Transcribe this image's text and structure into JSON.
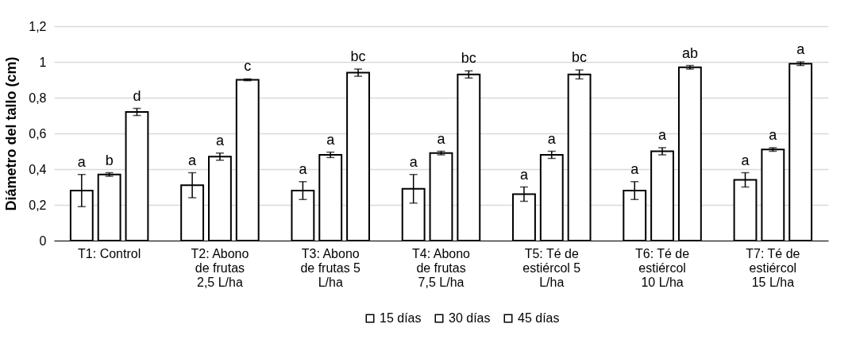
{
  "chart_data": {
    "type": "bar",
    "ylabel": "Diámetro del tallo (cm)",
    "categories": [
      "T1: Control",
      "T2: Abono de frutas 2,5 L/ha",
      "T3: Abono de frutas  5 L/ha",
      "T4: Abono de frutas 7,5 L/ha",
      "T5: Té de estiércol 5 L/ha",
      "T6: Té de estiércol 10 L/ha",
      "T7: Té de estiércol 15 L/ha"
    ],
    "series": [
      {
        "name": "15 días",
        "color": "#ffffff",
        "values": [
          0.28,
          0.31,
          0.28,
          0.29,
          0.26,
          0.28,
          0.34
        ],
        "errors": [
          0.09,
          0.07,
          0.05,
          0.08,
          0.04,
          0.05,
          0.04
        ],
        "value_labels": [
          "a",
          "a",
          "a",
          "a",
          "a",
          "a",
          "a"
        ]
      },
      {
        "name": "30 días",
        "color": "#ffffff",
        "values": [
          0.37,
          0.47,
          0.48,
          0.49,
          0.48,
          0.5,
          0.51
        ],
        "errors": [
          0.01,
          0.02,
          0.015,
          0.01,
          0.02,
          0.02,
          0.01
        ],
        "value_labels": [
          "b",
          "a",
          "a",
          "a",
          "a",
          "a",
          "a"
        ]
      },
      {
        "name": "45 días",
        "color": "#ffffff",
        "values": [
          0.72,
          0.9,
          0.94,
          0.93,
          0.93,
          0.97,
          0.99
        ],
        "errors": [
          0.02,
          0.005,
          0.02,
          0.02,
          0.025,
          0.01,
          0.01
        ],
        "value_labels": [
          "d",
          "c",
          "bc",
          "bc",
          "bc",
          "ab",
          "a"
        ]
      }
    ],
    "ylim": [
      0,
      1.2
    ],
    "yticks": [
      0,
      {
        "value": 0.2,
        "label": "0,2"
      },
      {
        "value": 0.4,
        "label": "0,4"
      },
      {
        "value": 0.6,
        "label": "0,6"
      },
      {
        "value": 0.8,
        "label": "0,8"
      },
      1,
      {
        "value": 1.2,
        "label": "1,2"
      }
    ],
    "grid": "y",
    "legend": "bottom"
  }
}
